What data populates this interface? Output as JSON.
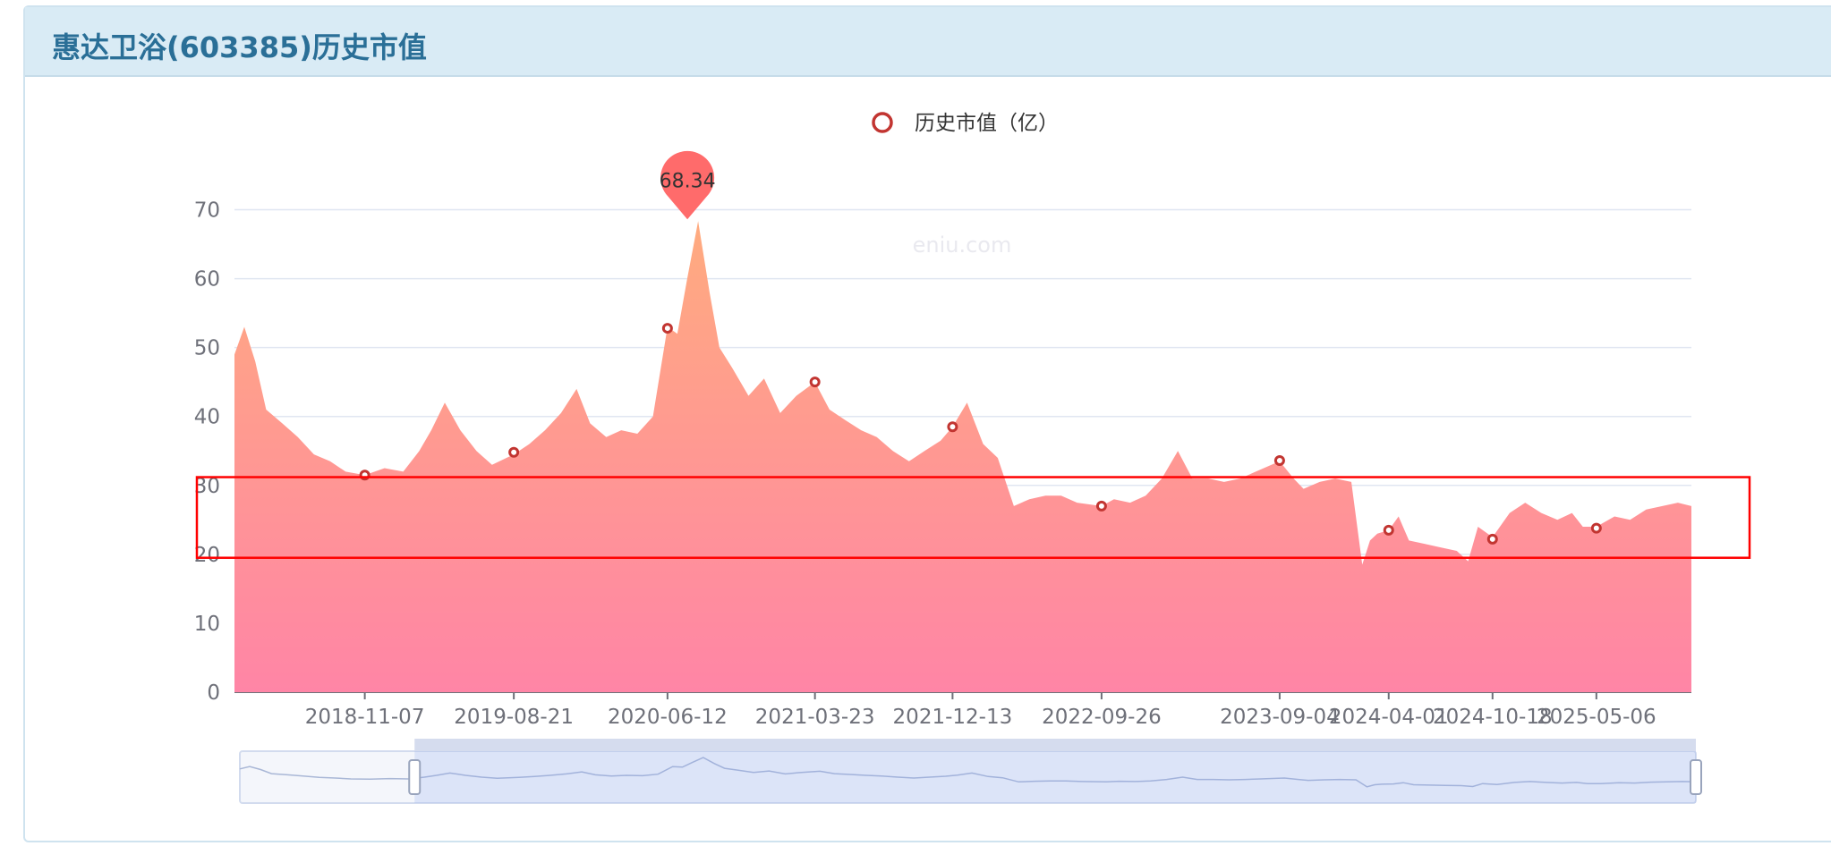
{
  "panel": {
    "title": "惠达卫浴(603385)历史市值"
  },
  "watermark": "eniu.com",
  "colors": {
    "header_bg": "#d9ebf5",
    "title": "#2a6f97",
    "area_top": "#ffab7f",
    "area_bottom": "#ff85a6",
    "marker": "#c23531",
    "pin": "#ff6b6b",
    "highlight_box": "#ff0000"
  },
  "chart_data": {
    "type": "area",
    "legend": {
      "label": "历史市值（亿）",
      "position": "top-center"
    },
    "y_ticks": [
      0,
      10,
      20,
      30,
      40,
      50,
      60,
      70
    ],
    "ylim": [
      0,
      70
    ],
    "grid": true,
    "x_range": [
      "2018-03-01",
      "2025-11-05"
    ],
    "x_ticks": [
      "2018-11-07",
      "2019-08-21",
      "2020-06-12",
      "2021-03-23",
      "2021-12-13",
      "2022-09-26",
      "2023-09-04",
      "2024-04-01",
      "2024-10-18",
      "2025-05-06"
    ],
    "series": [
      {
        "name": "历史市值（亿）",
        "x": [
          "2018-03-01",
          "2018-03-20",
          "2018-04-10",
          "2018-05-01",
          "2018-06-01",
          "2018-07-01",
          "2018-08-01",
          "2018-09-01",
          "2018-10-01",
          "2018-11-07",
          "2018-12-15",
          "2019-01-20",
          "2019-02-20",
          "2019-03-15",
          "2019-04-10",
          "2019-05-10",
          "2019-06-10",
          "2019-07-10",
          "2019-08-21",
          "2019-09-20",
          "2019-10-20",
          "2019-11-20",
          "2019-12-20",
          "2020-01-15",
          "2020-02-15",
          "2020-03-15",
          "2020-04-15",
          "2020-05-15",
          "2020-06-12",
          "2020-07-01",
          "2020-07-20",
          "2020-08-10",
          "2020-09-01",
          "2020-09-20",
          "2020-10-15",
          "2020-11-15",
          "2020-12-15",
          "2021-01-15",
          "2021-02-15",
          "2021-03-23",
          "2021-04-20",
          "2021-05-20",
          "2021-06-20",
          "2021-07-20",
          "2021-08-20",
          "2021-09-20",
          "2021-10-20",
          "2021-11-20",
          "2021-12-13",
          "2022-01-10",
          "2022-02-10",
          "2022-03-10",
          "2022-04-10",
          "2022-05-10",
          "2022-06-10",
          "2022-07-10",
          "2022-08-10",
          "2022-09-26",
          "2022-10-20",
          "2022-11-20",
          "2022-12-20",
          "2023-01-20",
          "2023-02-20",
          "2023-03-20",
          "2023-04-20",
          "2023-05-20",
          "2023-06-20",
          "2023-07-20",
          "2023-09-04",
          "2023-10-01",
          "2023-10-20",
          "2023-11-20",
          "2023-12-20",
          "2024-01-20",
          "2024-02-10",
          "2024-02-25",
          "2024-03-10",
          "2024-04-01",
          "2024-04-20",
          "2024-05-10",
          "2024-06-10",
          "2024-07-10",
          "2024-08-10",
          "2024-09-01",
          "2024-09-20",
          "2024-10-18",
          "2024-11-20",
          "2024-12-20",
          "2025-01-20",
          "2025-02-20",
          "2025-03-20",
          "2025-04-10",
          "2025-05-06",
          "2025-06-10",
          "2025-07-10",
          "2025-08-10",
          "2025-09-10",
          "2025-10-10",
          "2025-11-05"
        ],
        "values": [
          49.0,
          53.0,
          48.0,
          41.0,
          39.0,
          37.0,
          34.5,
          33.5,
          32.0,
          31.5,
          32.5,
          32.0,
          35.0,
          38.0,
          42.0,
          38.0,
          35.0,
          33.0,
          34.5,
          36.0,
          38.0,
          40.5,
          44.0,
          39.0,
          37.0,
          38.0,
          37.5,
          40.0,
          53.0,
          52.0,
          60.0,
          68.34,
          58.0,
          50.0,
          47.0,
          43.0,
          45.5,
          40.5,
          43.0,
          45.0,
          41.0,
          39.5,
          38.0,
          37.0,
          35.0,
          33.5,
          35.0,
          36.5,
          38.5,
          42.0,
          36.0,
          34.0,
          27.0,
          28.0,
          28.5,
          28.5,
          27.5,
          27.0,
          28.0,
          27.5,
          28.5,
          31.0,
          35.0,
          31.0,
          31.0,
          30.5,
          31.0,
          32.0,
          33.5,
          31.0,
          29.5,
          30.5,
          31.0,
          30.5,
          18.5,
          22.0,
          23.0,
          23.5,
          25.5,
          22.0,
          21.5,
          21.0,
          20.5,
          19.0,
          24.0,
          22.5,
          26.0,
          27.5,
          26.0,
          25.0,
          26.0,
          24.0,
          24.0,
          25.5,
          25.0,
          26.5,
          27.0,
          27.5,
          27.0
        ]
      }
    ],
    "markers": [
      {
        "x": "2018-11-07",
        "y": 31.5
      },
      {
        "x": "2019-08-21",
        "y": 34.8
      },
      {
        "x": "2020-06-12",
        "y": 52.8
      },
      {
        "x": "2021-03-23",
        "y": 45.0
      },
      {
        "x": "2021-12-13",
        "y": 38.5
      },
      {
        "x": "2022-09-26",
        "y": 27.0
      },
      {
        "x": "2023-09-04",
        "y": 33.6
      },
      {
        "x": "2024-04-01",
        "y": 23.5
      },
      {
        "x": "2024-10-18",
        "y": 22.2
      },
      {
        "x": "2025-05-06",
        "y": 23.8
      }
    ],
    "max_point": {
      "x": "2020-08-10",
      "y": 68.34,
      "label": "68.34"
    },
    "highlight_band": {
      "y_from": 19.5,
      "y_to": 31.2
    },
    "datazoom": {
      "start": 0.12,
      "end": 1.0
    }
  }
}
